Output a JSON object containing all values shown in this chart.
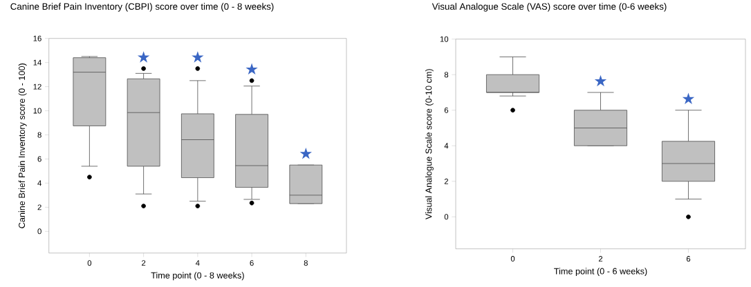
{
  "chart_data": [
    {
      "type": "box",
      "title": "Canine Brief Pain Inventory (CBPI) score over time (0 - 8 weeks)",
      "xlabel": "Time point (0 - 8 weeks)",
      "ylabel": "Canine Brief Pain Inventory score (0 - 100)",
      "categories": [
        "0",
        "2",
        "4",
        "6",
        "8"
      ],
      "color": "#c0c0c0",
      "ylim": [
        -1.8,
        16
      ],
      "yticks": [
        0,
        2,
        4,
        6,
        8,
        10,
        12,
        14,
        16
      ],
      "boxes": [
        {
          "low": 5.4,
          "q1": 8.75,
          "median": 13.2,
          "q3": 14.4,
          "high": 14.5,
          "outliers": [
            4.5
          ]
        },
        {
          "low": 3.1,
          "q1": 5.4,
          "median": 9.85,
          "q3": 12.65,
          "high": 13.1,
          "outliers": [
            2.1,
            13.5
          ]
        },
        {
          "low": 2.5,
          "q1": 4.45,
          "median": 7.6,
          "q3": 9.75,
          "high": 12.5,
          "outliers": [
            2.1,
            13.5
          ]
        },
        {
          "low": 2.65,
          "q1": 3.65,
          "median": 5.45,
          "q3": 9.7,
          "high": 12.05,
          "outliers": [
            2.35,
            12.5
          ]
        },
        {
          "low": 2.3,
          "q1": 2.3,
          "median": 3.0,
          "q3": 5.5,
          "high": 5.5
        }
      ],
      "annotations": [
        "★",
        "★",
        "★",
        "★"
      ]
    },
    {
      "type": "box",
      "title": "Visual Analogue Scale (VAS) score over time (0-6 weeks)",
      "xlabel": "Time point (0 - 6 weeks)",
      "ylabel": "Visual Analogue Scale score (0-10 cm)",
      "categories": [
        "0",
        "2",
        "6"
      ],
      "color": "#c0c0c0",
      "ylim": [
        -1.8,
        10
      ],
      "yticks": [
        0,
        2,
        4,
        6,
        8,
        10
      ],
      "boxes": [
        {
          "low": 6.8,
          "q1": 7,
          "median": 7,
          "q3": 8,
          "high": 9,
          "outliers": [
            6
          ]
        },
        {
          "low": 4,
          "q1": 4,
          "median": 5,
          "q3": 6,
          "high": 7
        },
        {
          "low": 1,
          "q1": 2,
          "median": 3,
          "q3": 4.25,
          "high": 6,
          "outliers": [
            0
          ]
        }
      ],
      "annotations": [
        "★",
        "★"
      ]
    }
  ]
}
